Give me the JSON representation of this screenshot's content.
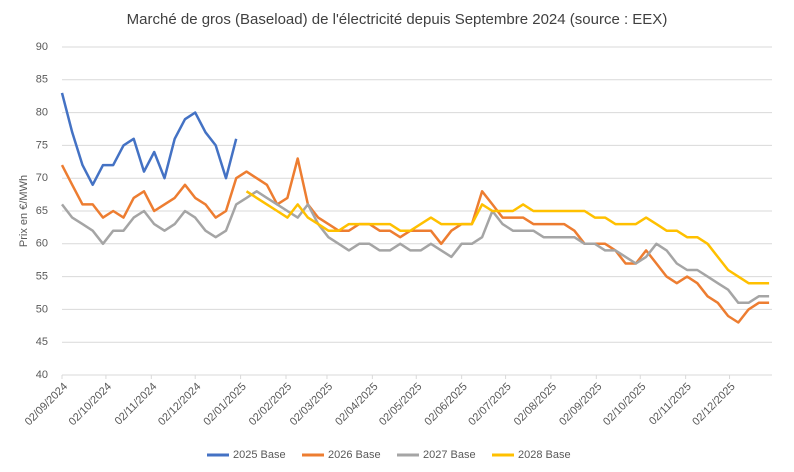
{
  "chart_data": {
    "type": "line",
    "title": "Marché de gros (Baseload) de l'électricité depuis Septembre 2024 (source : EEX)",
    "y_label": "Prix en €/MWh",
    "x": [
      "02/09/2024",
      "09/09/2024",
      "16/09/2024",
      "23/09/2024",
      "30/09/2024",
      "07/10/2024",
      "14/10/2024",
      "21/10/2024",
      "28/10/2024",
      "04/11/2024",
      "11/11/2024",
      "18/11/2024",
      "25/11/2024",
      "02/12/2024",
      "09/12/2024",
      "16/12/2024",
      "23/12/2024",
      "30/12/2024",
      "06/01/2025",
      "13/01/2025",
      "20/01/2025",
      "27/01/2025",
      "03/02/2025",
      "10/02/2025",
      "17/02/2025",
      "24/02/2025",
      "03/03/2025",
      "10/03/2025",
      "17/03/2025",
      "24/03/2025",
      "31/03/2025",
      "07/04/2025",
      "14/04/2025",
      "21/04/2025",
      "28/04/2025",
      "05/05/2025",
      "12/05/2025",
      "19/05/2025",
      "26/05/2025",
      "02/06/2025",
      "09/06/2025",
      "16/06/2025",
      "23/06/2025",
      "30/06/2025",
      "07/07/2025",
      "14/07/2025",
      "21/07/2025",
      "28/07/2025",
      "04/08/2025",
      "11/08/2025",
      "18/08/2025",
      "25/08/2025",
      "01/09/2025",
      "08/09/2025",
      "15/09/2025",
      "22/09/2025",
      "29/09/2025",
      "06/10/2025",
      "13/10/2025",
      "20/10/2025",
      "27/10/2025",
      "03/11/2025",
      "10/11/2025",
      "17/11/2025",
      "24/11/2025",
      "01/12/2025",
      "08/12/2025",
      "15/12/2025",
      "22/12/2025",
      "29/12/2025"
    ],
    "series": [
      {
        "name": "2025 Base",
        "color": "#4472c4",
        "values": [
          83,
          77,
          72,
          69,
          72,
          72,
          75,
          76,
          71,
          74,
          70,
          76,
          79,
          80,
          77,
          75,
          70,
          76,
          null,
          null,
          null,
          null,
          null,
          null,
          null,
          null,
          null,
          null,
          null,
          null,
          null,
          null,
          null,
          null,
          null,
          null,
          null,
          null,
          null,
          null,
          null,
          null,
          null,
          null,
          null,
          null,
          null,
          null,
          null,
          null,
          null,
          null,
          null,
          null,
          null,
          null,
          null,
          null,
          null,
          null,
          null,
          null,
          null,
          null,
          null,
          null,
          null,
          null,
          null,
          null
        ]
      },
      {
        "name": "2026 Base",
        "color": "#ed7d31",
        "values": [
          72,
          69,
          66,
          66,
          64,
          65,
          64,
          67,
          68,
          65,
          66,
          67,
          69,
          67,
          66,
          64,
          65,
          70,
          71,
          70,
          69,
          66,
          67,
          73,
          66,
          64,
          63,
          62,
          62,
          63,
          63,
          62,
          62,
          61,
          62,
          62,
          62,
          60,
          62,
          63,
          63,
          68,
          66,
          64,
          64,
          64,
          63,
          63,
          63,
          63,
          62,
          60,
          60,
          60,
          59,
          57,
          57,
          59,
          57,
          55,
          54,
          55,
          54,
          52,
          51,
          49,
          48,
          50,
          51,
          51
        ]
      },
      {
        "name": "2027 Base",
        "color": "#a5a5a5",
        "values": [
          66,
          64,
          63,
          62,
          60,
          62,
          62,
          64,
          65,
          63,
          62,
          63,
          65,
          64,
          62,
          61,
          62,
          66,
          67,
          68,
          67,
          66,
          65,
          64,
          66,
          63,
          61,
          60,
          59,
          60,
          60,
          59,
          59,
          60,
          59,
          59,
          60,
          59,
          58,
          60,
          60,
          61,
          65,
          63,
          62,
          62,
          62,
          61,
          61,
          61,
          61,
          60,
          60,
          59,
          59,
          58,
          57,
          58,
          60,
          59,
          57,
          56,
          56,
          55,
          54,
          53,
          51,
          51,
          52,
          52
        ]
      },
      {
        "name": "2028 Base",
        "color": "#ffc000",
        "values": [
          null,
          null,
          null,
          null,
          null,
          null,
          null,
          null,
          null,
          null,
          null,
          null,
          null,
          null,
          null,
          null,
          null,
          null,
          68,
          67,
          66,
          65,
          64,
          66,
          64,
          63,
          62,
          62,
          63,
          63,
          63,
          63,
          63,
          62,
          62,
          63,
          64,
          63,
          63,
          63,
          63,
          66,
          65,
          65,
          65,
          66,
          65,
          65,
          65,
          65,
          65,
          65,
          64,
          64,
          63,
          63,
          63,
          64,
          63,
          62,
          62,
          61,
          61,
          60,
          58,
          56,
          55,
          54,
          54,
          54
        ]
      }
    ],
    "xlim": [
      "02/09/2024",
      "31/12/2025"
    ],
    "xticks": [
      "02/09/2024",
      "02/10/2024",
      "02/11/2024",
      "02/12/2024",
      "02/01/2025",
      "02/02/2025",
      "02/03/2025",
      "02/04/2025",
      "02/05/2025",
      "02/06/2025",
      "02/07/2025",
      "02/08/2025",
      "02/09/2025",
      "02/10/2025",
      "02/11/2025",
      "02/12/2025"
    ],
    "ylim": [
      40,
      90
    ],
    "yticks": [
      40,
      45,
      50,
      55,
      60,
      65,
      70,
      75,
      80,
      85,
      90
    ],
    "grid": true,
    "legend": "bottom"
  }
}
